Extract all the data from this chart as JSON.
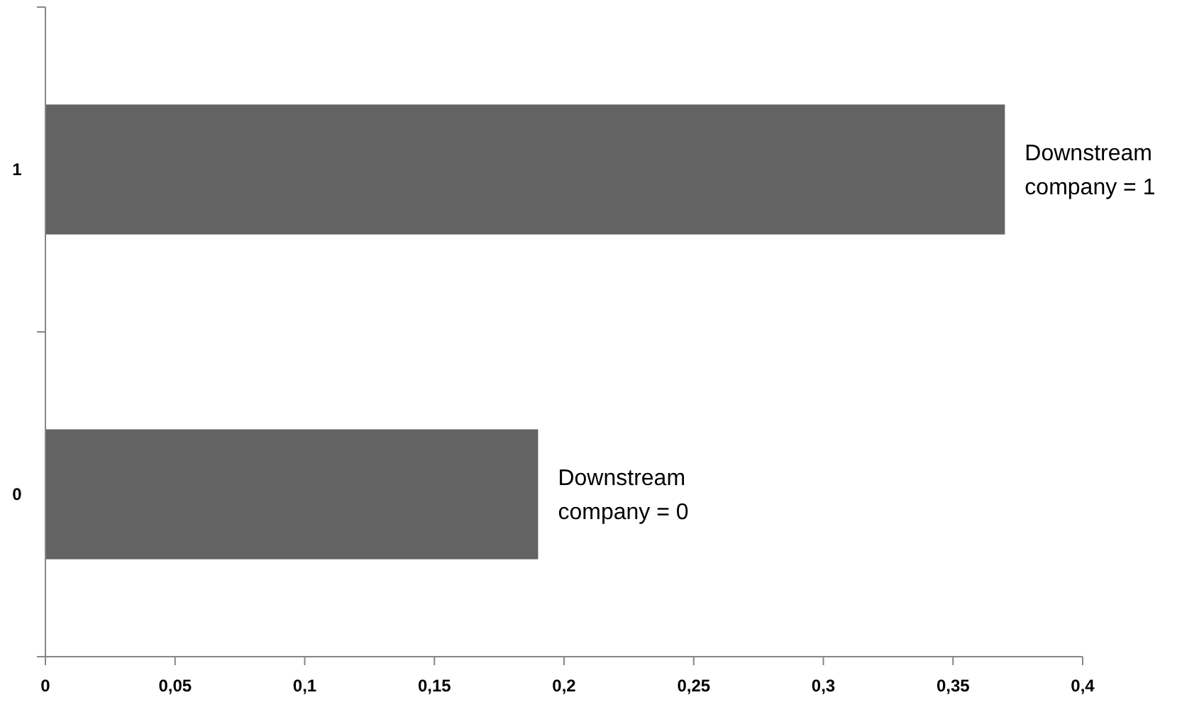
{
  "chart_data": {
    "type": "bar",
    "orientation": "horizontal",
    "categories": [
      "1",
      "0"
    ],
    "values": [
      0.37,
      0.19
    ],
    "color": "#636363",
    "xlim": [
      0,
      0.4
    ],
    "xticks": [
      0,
      {
        "value": 0.05,
        "label": "0,05"
      },
      {
        "value": 0.1,
        "label": "0,1"
      },
      {
        "value": 0.15,
        "label": "0,15"
      },
      {
        "value": 0.2,
        "label": "0,2"
      },
      {
        "value": 0.25,
        "label": "0,25"
      },
      {
        "value": 0.3,
        "label": "0,3"
      },
      {
        "value": 0.35,
        "label": "0,35"
      },
      {
        "value": 0.4,
        "label": "0,4"
      }
    ],
    "annotations": [
      {
        "text": "Downstream company = 1",
        "x": 0.37,
        "y": "1"
      },
      {
        "text": "Downstream company = 0",
        "x": 0.19,
        "y": "0"
      }
    ],
    "grid": false
  }
}
